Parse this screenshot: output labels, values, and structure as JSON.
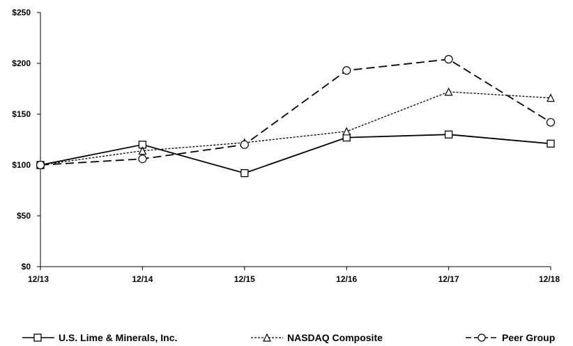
{
  "chart_data": {
    "type": "line",
    "categories": [
      "12/13",
      "12/14",
      "12/15",
      "12/16",
      "12/17",
      "12/18"
    ],
    "y_tick_labels": [
      "$0",
      "$50",
      "$100",
      "$150",
      "$200",
      "$250"
    ],
    "y_ticks": [
      0,
      50,
      100,
      150,
      200,
      250
    ],
    "ylim": [
      0,
      250
    ],
    "grid": false,
    "legend_position": "bottom",
    "series": [
      {
        "name": "U.S. Lime & Minerals, Inc.",
        "values": [
          100,
          120,
          92,
          127,
          130,
          121
        ],
        "marker": "square",
        "dash": "solid",
        "color": "#000000"
      },
      {
        "name": "NASDAQ Composite",
        "values": [
          100,
          114,
          122,
          133,
          172,
          166
        ],
        "marker": "triangle",
        "dash": "dotted",
        "color": "#000000"
      },
      {
        "name": "Peer Group",
        "values": [
          100,
          106,
          120,
          193,
          204,
          142
        ],
        "marker": "circle",
        "dash": "dashed",
        "color": "#000000"
      }
    ]
  }
}
